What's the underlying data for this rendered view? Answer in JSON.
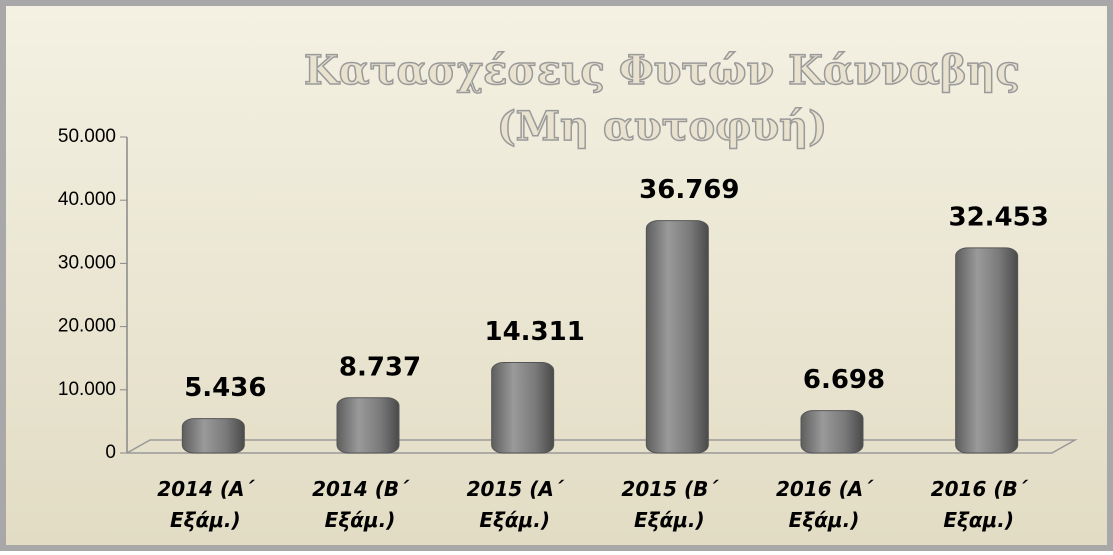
{
  "chart_data": {
    "type": "bar",
    "title": [
      "Κατασχέσεις Φυτών Κάνναβης",
      "(Μη αυτοφυή)"
    ],
    "categories": [
      "2014 (Α΄ Εξάμ.)",
      "2014 (Β΄ Εξάμ.)",
      "2015 (Α΄ Εξάμ.)",
      "2015 (Β΄ Εξάμ.)",
      "2016 (Α΄ Εξάμ.)",
      "2016 (Β΄ Εξαμ.)"
    ],
    "values": [
      5436,
      8737,
      14311,
      36769,
      6698,
      32453
    ],
    "value_labels": [
      "5.436",
      "8.737",
      "14.311",
      "36.769",
      "6.698",
      "32.453"
    ],
    "color": "#808080",
    "ylim": [
      0,
      50000
    ],
    "yticks": [
      0,
      {
        "value": 10000,
        "label": "10.000"
      },
      {
        "value": 20000,
        "label": "20.000"
      },
      {
        "value": 30000,
        "label": "30.000"
      },
      {
        "value": 40000,
        "label": "40.000"
      },
      {
        "value": 50000,
        "label": "50.000"
      }
    ],
    "grid": false
  }
}
